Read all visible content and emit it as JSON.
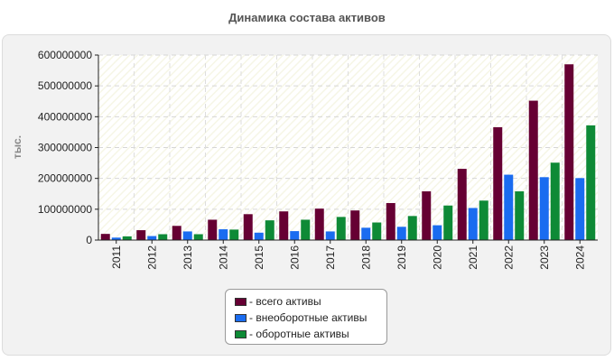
{
  "chart_data": {
    "type": "bar",
    "title": "Динамика состава активов",
    "ylabel": "тыс.",
    "xlabel": "",
    "categories": [
      "2011",
      "2012",
      "2013",
      "2014",
      "2015",
      "2016",
      "2017",
      "2018",
      "2019",
      "2020",
      "2021",
      "2022",
      "2023",
      "2024"
    ],
    "series": [
      {
        "name": "- всего активы",
        "color": "#660033",
        "values": [
          20000000,
          32000000,
          46000000,
          66000000,
          84000000,
          93000000,
          102000000,
          96000000,
          120000000,
          158000000,
          231000000,
          366000000,
          452000000,
          570000000
        ]
      },
      {
        "name": "- внеоборотные активы",
        "color": "#1a6cf0",
        "values": [
          8000000,
          13000000,
          28000000,
          35000000,
          24000000,
          29000000,
          28000000,
          40000000,
          43000000,
          48000000,
          104000000,
          212000000,
          204000000,
          201000000
        ]
      },
      {
        "name": "- оборотные активы",
        "color": "#0e8a36",
        "values": [
          12000000,
          19000000,
          19000000,
          34000000,
          64000000,
          66000000,
          75000000,
          57000000,
          78000000,
          112000000,
          128000000,
          158000000,
          251000000,
          372000000
        ]
      }
    ],
    "ylim": [
      0,
      600000000
    ],
    "yticks": [
      "0",
      "100000000",
      "200000000",
      "300000000",
      "400000000",
      "500000000",
      "600000000"
    ],
    "grid": true,
    "legend_position": "bottom-center"
  }
}
